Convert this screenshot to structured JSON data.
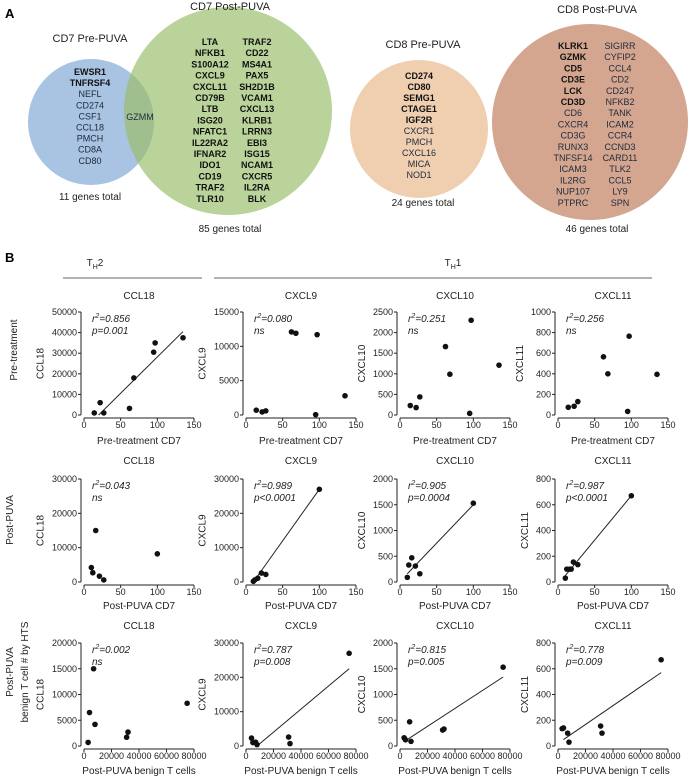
{
  "panel_a": {
    "label": "A",
    "venns": [
      {
        "title": "CD7 Pre-PUVA",
        "total": "11 genes total",
        "color": "#a9c3e2",
        "columns": [
          [
            {
              "g": "EWSR1",
              "b": true
            },
            {
              "g": "TNFRSF4",
              "b": true
            },
            {
              "g": "NEFL",
              "b": false
            },
            {
              "g": "CD274",
              "b": false
            },
            {
              "g": "CSF1",
              "b": false
            },
            {
              "g": "CCL18",
              "b": false
            },
            {
              "g": "PMCH",
              "b": false
            },
            {
              "g": "CD8A",
              "b": false
            },
            {
              "g": "CD80",
              "b": false
            }
          ]
        ]
      },
      {
        "title": "CD7 Post-PUVA",
        "total": "85 genes total",
        "color": "#b9d39a",
        "columns": [
          [
            {
              "g": "LTA",
              "b": true
            },
            {
              "g": "NFKB1",
              "b": true
            },
            {
              "g": "S100A12",
              "b": true
            },
            {
              "g": "CXCL9",
              "b": true
            },
            {
              "g": "CXCL11",
              "b": true
            },
            {
              "g": "CD79B",
              "b": true
            },
            {
              "g": "LTB",
              "b": true
            },
            {
              "g": "ISG20",
              "b": true
            },
            {
              "g": "NFATC1",
              "b": true
            },
            {
              "g": "IL22RA2",
              "b": true
            },
            {
              "g": "IFNAR2",
              "b": true
            },
            {
              "g": "IDO1",
              "b": true
            },
            {
              "g": "CD19",
              "b": true
            },
            {
              "g": "TRAF2",
              "b": true
            },
            {
              "g": "TLR10",
              "b": true
            }
          ],
          [
            {
              "g": "TRAF2",
              "b": true
            },
            {
              "g": "CD22",
              "b": true
            },
            {
              "g": "MS4A1",
              "b": true
            },
            {
              "g": "PAX5",
              "b": true
            },
            {
              "g": "SH2D1B",
              "b": true
            },
            {
              "g": "VCAM1",
              "b": true
            },
            {
              "g": "CXCL13",
              "b": true
            },
            {
              "g": "KLRB1",
              "b": true
            },
            {
              "g": "LRRN3",
              "b": true
            },
            {
              "g": "EBI3",
              "b": true
            },
            {
              "g": "ISG15",
              "b": true
            },
            {
              "g": "NCAM1",
              "b": true
            },
            {
              "g": "CXCR5",
              "b": true
            },
            {
              "g": "IL2RA",
              "b": true
            },
            {
              "g": "BLK",
              "b": true
            }
          ]
        ]
      },
      {
        "title": "CD8 Pre-PUVA",
        "total": "24 genes total",
        "color": "#f0cfb0",
        "columns": [
          [
            {
              "g": "CD274",
              "b": true
            },
            {
              "g": "CD80",
              "b": true
            },
            {
              "g": "SEMG1",
              "b": true
            },
            {
              "g": "CTAGE1",
              "b": true
            },
            {
              "g": "IGF2R",
              "b": true
            },
            {
              "g": "CXCR1",
              "b": false
            },
            {
              "g": "PMCH",
              "b": false
            },
            {
              "g": "CXCL16",
              "b": false
            },
            {
              "g": "MICA",
              "b": false
            },
            {
              "g": "NOD1",
              "b": false
            }
          ]
        ]
      },
      {
        "title": "CD8 Post-PUVA",
        "total": "46 genes total",
        "color": "#d4a690",
        "columns": [
          [
            {
              "g": "KLRK1",
              "b": true
            },
            {
              "g": "GZMK",
              "b": true
            },
            {
              "g": "CD5",
              "b": true
            },
            {
              "g": "CD3E",
              "b": true
            },
            {
              "g": "LCK",
              "b": true
            },
            {
              "g": "CD3D",
              "b": true
            },
            {
              "g": "CD6",
              "b": false
            },
            {
              "g": "CXCR4",
              "b": false
            },
            {
              "g": "CD3G",
              "b": false
            },
            {
              "g": "RUNX3",
              "b": false
            },
            {
              "g": "TNFSF14",
              "b": false
            },
            {
              "g": "ICAM3",
              "b": false
            },
            {
              "g": "IL2RG",
              "b": false
            },
            {
              "g": "NUP107",
              "b": false
            },
            {
              "g": "PTPRC",
              "b": false
            }
          ],
          [
            {
              "g": "SIGIRR",
              "b": false
            },
            {
              "g": "CYFIP2",
              "b": false
            },
            {
              "g": "CCL4",
              "b": false
            },
            {
              "g": "CD2",
              "b": false
            },
            {
              "g": "CD247",
              "b": false
            },
            {
              "g": "NFKB2",
              "b": false
            },
            {
              "g": "TANK",
              "b": false
            },
            {
              "g": "ICAM2",
              "b": false
            },
            {
              "g": "CCR4",
              "b": false
            },
            {
              "g": "CCND3",
              "b": false
            },
            {
              "g": "CARD11",
              "b": false
            },
            {
              "g": "TLK2",
              "b": false
            },
            {
              "g": "CCL5",
              "b": false
            },
            {
              "g": "LY9",
              "b": false
            },
            {
              "g": "SPN",
              "b": false
            }
          ]
        ]
      }
    ],
    "overlap_gene": "GZMM"
  },
  "panel_b": {
    "label": "B",
    "groups": [
      {
        "main": "T",
        "sub": "H",
        "suffix": "2"
      },
      {
        "main": "T",
        "sub": "H",
        "suffix": "1"
      }
    ],
    "row_labels": [
      [
        "Pre-treatment"
      ],
      [
        "Post-PUVA"
      ],
      [
        "Post-PUVA",
        "benign  T cell # by  HTS"
      ]
    ]
  },
  "chart_data": [
    {
      "type": "scatter",
      "title": "CCL18",
      "xlabel": "Pre-treatment CD7",
      "ylabel": "CCL18",
      "xlim": [
        0,
        150
      ],
      "xticks": [
        0,
        50,
        100,
        150
      ],
      "ylim": [
        0,
        50000
      ],
      "yticks": [
        0,
        10000,
        20000,
        30000,
        40000,
        50000
      ],
      "r2": "=0.856",
      "p": "p=0.001",
      "points": [
        [
          14,
          1000
        ],
        [
          22,
          6000
        ],
        [
          27,
          1000
        ],
        [
          62,
          3200
        ],
        [
          68,
          18000
        ],
        [
          95,
          30500
        ],
        [
          97,
          35000
        ],
        [
          135,
          37500
        ]
      ],
      "fit": [
        [
          20,
          0
        ],
        [
          135,
          40500
        ]
      ]
    },
    {
      "type": "scatter",
      "title": "CXCL9",
      "xlabel": "Pre-treatment CD7",
      "ylabel": "CXCL9",
      "xlim": [
        0,
        150
      ],
      "xticks": [
        0,
        50,
        100,
        150
      ],
      "ylim": [
        0,
        15000
      ],
      "yticks": [
        0,
        5000,
        10000,
        15000
      ],
      "r2": "=0.080",
      "p": "ns",
      "points": [
        [
          14,
          700
        ],
        [
          22,
          450
        ],
        [
          27,
          600
        ],
        [
          62,
          12100
        ],
        [
          68,
          11900
        ],
        [
          95,
          50
        ],
        [
          97,
          11700
        ],
        [
          135,
          2800
        ]
      ]
    },
    {
      "type": "scatter",
      "title": "CXCL10",
      "xlabel": "Pre-treatment CD7",
      "ylabel": "CXCL10",
      "xlim": [
        0,
        150
      ],
      "xticks": [
        0,
        50,
        100,
        150
      ],
      "ylim": [
        0,
        2500
      ],
      "yticks": [
        0,
        500,
        1000,
        1500,
        2000,
        2500
      ],
      "r2": "=0.251",
      "p": "ns",
      "points": [
        [
          14,
          230
        ],
        [
          22,
          180
        ],
        [
          27,
          440
        ],
        [
          62,
          1660
        ],
        [
          68,
          990
        ],
        [
          95,
          40
        ],
        [
          97,
          2300
        ],
        [
          135,
          1210
        ]
      ]
    },
    {
      "type": "scatter",
      "title": "CXCL11",
      "xlabel": "Pre-treatment CD7",
      "ylabel": "CXCL11",
      "xlim": [
        0,
        150
      ],
      "xticks": [
        0,
        50,
        100,
        150
      ],
      "ylim": [
        0,
        1000
      ],
      "yticks": [
        0,
        200,
        400,
        600,
        800,
        1000
      ],
      "r2": "=0.256",
      "p": "ns",
      "points": [
        [
          14,
          75
        ],
        [
          22,
          85
        ],
        [
          27,
          130
        ],
        [
          62,
          565
        ],
        [
          68,
          400
        ],
        [
          95,
          35
        ],
        [
          97,
          765
        ],
        [
          135,
          395
        ]
      ]
    },
    {
      "type": "scatter",
      "title": "CCL18",
      "xlabel": "Post-PUVA  CD7",
      "ylabel": "CCL18",
      "xlim": [
        0,
        150
      ],
      "xticks": [
        0,
        50,
        100,
        150
      ],
      "ylim": [
        0,
        30000
      ],
      "yticks": [
        0,
        10000,
        20000,
        30000
      ],
      "r2": "=0.043",
      "p": "ns",
      "points": [
        [
          10,
          4200
        ],
        [
          12,
          2700
        ],
        [
          16,
          15000
        ],
        [
          21,
          1700
        ],
        [
          27,
          600
        ],
        [
          100,
          8200
        ]
      ]
    },
    {
      "type": "scatter",
      "title": "CXCL9",
      "xlabel": "Post-PUVA  CD7",
      "ylabel": "CXCL9",
      "xlim": [
        0,
        150
      ],
      "xticks": [
        0,
        50,
        100,
        150
      ],
      "ylim": [
        0,
        30000
      ],
      "yticks": [
        0,
        10000,
        20000,
        30000
      ],
      "r2": "=0.989",
      "p": "p<0.0001",
      "points": [
        [
          10,
          200
        ],
        [
          12,
          600
        ],
        [
          16,
          1100
        ],
        [
          21,
          2600
        ],
        [
          27,
          2200
        ],
        [
          100,
          27000
        ]
      ],
      "fit": [
        [
          10,
          0
        ],
        [
          100,
          27000
        ]
      ]
    },
    {
      "type": "scatter",
      "title": "CXCL10",
      "xlabel": "Post-PUVA CD7",
      "ylabel": "CXCL10",
      "xlim": [
        0,
        150
      ],
      "xticks": [
        0,
        50,
        100,
        150
      ],
      "ylim": [
        0,
        2000
      ],
      "yticks": [
        0,
        500,
        1000,
        1500,
        2000
      ],
      "r2": "=0.905",
      "p": "p=0.0004",
      "points": [
        [
          10,
          90
        ],
        [
          12,
          330
        ],
        [
          16,
          470
        ],
        [
          21,
          310
        ],
        [
          27,
          160
        ],
        [
          100,
          1530
        ]
      ],
      "fit": [
        [
          10,
          160
        ],
        [
          100,
          1500
        ]
      ]
    },
    {
      "type": "scatter",
      "title": "CXCL11",
      "xlabel": "Post-PUVA CD7",
      "ylabel": "CXCL11",
      "xlim": [
        0,
        150
      ],
      "xticks": [
        0,
        50,
        100,
        150
      ],
      "ylim": [
        0,
        800
      ],
      "yticks": [
        0,
        200,
        400,
        600,
        800
      ],
      "r2": "=0.987",
      "p": "p<0.0001",
      "points": [
        [
          10,
          30
        ],
        [
          12,
          100
        ],
        [
          16,
          100
        ],
        [
          18,
          100
        ],
        [
          21,
          155
        ],
        [
          27,
          135
        ],
        [
          100,
          670
        ]
      ],
      "fit": [
        [
          10,
          50
        ],
        [
          100,
          670
        ]
      ]
    },
    {
      "type": "scatter",
      "title": "CCL18",
      "xlabel": "Post-PUVA benign T cells",
      "ylabel": "CCL18",
      "xlim": [
        0,
        80000
      ],
      "xticks": [
        0,
        20000,
        40000,
        60000,
        80000
      ],
      "ylim": [
        0,
        20000
      ],
      "yticks": [
        0,
        5000,
        10000,
        15000,
        20000
      ],
      "r2": "=0.002",
      "p": "ns",
      "points": [
        [
          3000,
          700
        ],
        [
          4000,
          6500
        ],
        [
          7000,
          15000
        ],
        [
          8000,
          4200
        ],
        [
          31000,
          1700
        ],
        [
          32000,
          2700
        ],
        [
          75000,
          8300
        ]
      ]
    },
    {
      "type": "scatter",
      "title": "CXCL9",
      "xlabel": "Post-PUVA benign T cells",
      "ylabel": "CXCL9",
      "xlim": [
        0,
        80000
      ],
      "xticks": [
        0,
        20000,
        40000,
        60000,
        80000
      ],
      "ylim": [
        0,
        30000
      ],
      "yticks": [
        0,
        10000,
        20000,
        30000
      ],
      "r2": "=0.787",
      "p": "p=0.008",
      "points": [
        [
          4000,
          2300
        ],
        [
          5000,
          1000
        ],
        [
          7000,
          1100
        ],
        [
          8000,
          400
        ],
        [
          31000,
          2600
        ],
        [
          32000,
          700
        ],
        [
          75000,
          27000
        ]
      ],
      "fit": [
        [
          8000,
          0
        ],
        [
          75000,
          22500
        ]
      ]
    },
    {
      "type": "scatter",
      "title": "CXCL10",
      "xlabel": "Post-PUVA benign T cells",
      "ylabel": "CXCL10",
      "xlim": [
        0,
        80000
      ],
      "xticks": [
        0,
        20000,
        40000,
        60000,
        80000
      ],
      "ylim": [
        0,
        2000
      ],
      "yticks": [
        0,
        500,
        1000,
        1500,
        2000
      ],
      "r2": "=0.815",
      "p": "p=0.005",
      "points": [
        [
          3000,
          160
        ],
        [
          4000,
          120
        ],
        [
          7000,
          470
        ],
        [
          8000,
          90
        ],
        [
          31000,
          310
        ],
        [
          32000,
          330
        ],
        [
          75000,
          1530
        ]
      ],
      "fit": [
        [
          5000,
          120
        ],
        [
          75000,
          1340
        ]
      ]
    },
    {
      "type": "scatter",
      "title": "CXCL11",
      "xlabel": "Post-PUVA benign T cells",
      "ylabel": "CXCL11",
      "xlim": [
        0,
        80000
      ],
      "xticks": [
        0,
        20000,
        40000,
        60000,
        80000
      ],
      "ylim": [
        0,
        800
      ],
      "yticks": [
        0,
        200,
        400,
        600,
        800
      ],
      "r2": "=0.778",
      "p": "p=0.009",
      "points": [
        [
          3000,
          135
        ],
        [
          4000,
          140
        ],
        [
          7000,
          100
        ],
        [
          8000,
          30
        ],
        [
          31000,
          155
        ],
        [
          32000,
          100
        ],
        [
          75000,
          670
        ]
      ],
      "fit": [
        [
          4000,
          50
        ],
        [
          75000,
          570
        ]
      ]
    }
  ]
}
